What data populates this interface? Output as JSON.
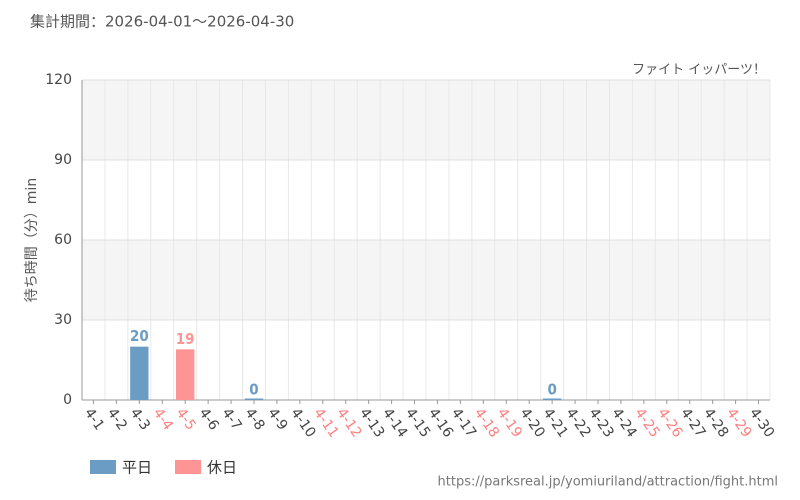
{
  "chart_data": {
    "type": "bar",
    "subtitle": "集計期間：2026-04-01～2026-04-30",
    "title": "ファイト イッパーツ！",
    "ylabel": "待ち時間（分）min",
    "source": "https://parksreal.jp/yomiuriland/attraction/fight.html",
    "categories": [
      "4-1",
      "4-2",
      "4-3",
      "4-4",
      "4-5",
      "4-6",
      "4-7",
      "4-8",
      "4-9",
      "4-10",
      "4-11",
      "4-12",
      "4-13",
      "4-14",
      "4-15",
      "4-16",
      "4-17",
      "4-18",
      "4-19",
      "4-20",
      "4-21",
      "4-22",
      "4-23",
      "4-24",
      "4-25",
      "4-26",
      "4-27",
      "4-28",
      "4-29",
      "4-30"
    ],
    "category_colors": [
      "#444",
      "#444",
      "#444",
      "#ff8080",
      "#ff8080",
      "#444",
      "#444",
      "#444",
      "#444",
      "#444",
      "#ff8080",
      "#ff8080",
      "#444",
      "#444",
      "#444",
      "#444",
      "#444",
      "#ff8080",
      "#ff8080",
      "#444",
      "#444",
      "#444",
      "#444",
      "#444",
      "#ff8080",
      "#ff8080",
      "#444",
      "#444",
      "#ff8080",
      "#444"
    ],
    "series": [
      {
        "name": "平日",
        "color": "#6a9cc4",
        "values": [
          null,
          null,
          20,
          null,
          null,
          null,
          null,
          0,
          null,
          null,
          null,
          null,
          null,
          null,
          null,
          null,
          null,
          null,
          null,
          null,
          0,
          null,
          null,
          null,
          null,
          null,
          null,
          null,
          null,
          null
        ]
      },
      {
        "name": "休日",
        "color": "#ff9494",
        "values": [
          null,
          null,
          null,
          null,
          19,
          null,
          null,
          null,
          null,
          null,
          null,
          null,
          null,
          null,
          null,
          null,
          null,
          null,
          null,
          null,
          null,
          null,
          null,
          null,
          null,
          null,
          null,
          null,
          null,
          null
        ]
      }
    ],
    "ylim": [
      0,
      120
    ],
    "yticks": [
      0,
      30,
      60,
      90,
      120
    ],
    "grid": true
  }
}
